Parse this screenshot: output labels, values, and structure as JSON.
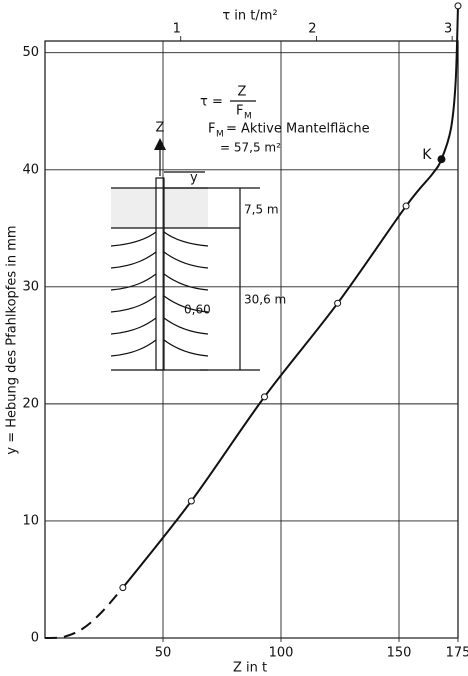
{
  "chart_data": {
    "type": "line",
    "x_label": "Z in t",
    "x2_label": "τ in t/m²",
    "y_label": "y = Hebung des Pfahlkopfes in mm",
    "xlim": [
      0,
      175
    ],
    "xticks": [
      50,
      100,
      150,
      175
    ],
    "xgrid": [
      50,
      100,
      150
    ],
    "x2lim": [
      0,
      3.043
    ],
    "x2ticks": [
      1,
      2,
      3
    ],
    "ylim": [
      0,
      51
    ],
    "yticks": [
      0,
      10,
      20,
      30,
      40,
      50
    ],
    "grid": true,
    "color": "#111111",
    "lines": [
      {
        "style": "dashed",
        "x": [
          0,
          8,
          16,
          24,
          33
        ],
        "values": [
          0,
          0.1,
          0.8,
          2.2,
          4.3
        ]
      },
      {
        "style": "solid",
        "x": [
          33,
          62,
          93,
          124,
          153,
          164,
          168,
          172,
          174,
          175
        ],
        "values": [
          4.3,
          11.7,
          20.6,
          28.6,
          36.9,
          39.6,
          40.9,
          43.5,
          47.5,
          54
        ]
      }
    ],
    "points": {
      "x": [
        33,
        62,
        93,
        124,
        153,
        175
      ],
      "values": [
        4.3,
        11.7,
        20.6,
        28.6,
        36.9,
        54
      ]
    },
    "point_k": {
      "label": "K",
      "x": 168,
      "value": 40.9
    },
    "formula": {
      "lhs": "τ =",
      "num": "Z",
      "den": "F",
      "den_sub": "M"
    },
    "fm_def": {
      "lhs": "F",
      "sub": "M",
      "rhs": "= Aktive Mantelfläche",
      "value": "= 57,5 m²"
    },
    "diagram": {
      "force": "Z",
      "heave": "y",
      "layer": "7,5 m",
      "length": "30,6 m",
      "diameter": "0,60"
    }
  }
}
